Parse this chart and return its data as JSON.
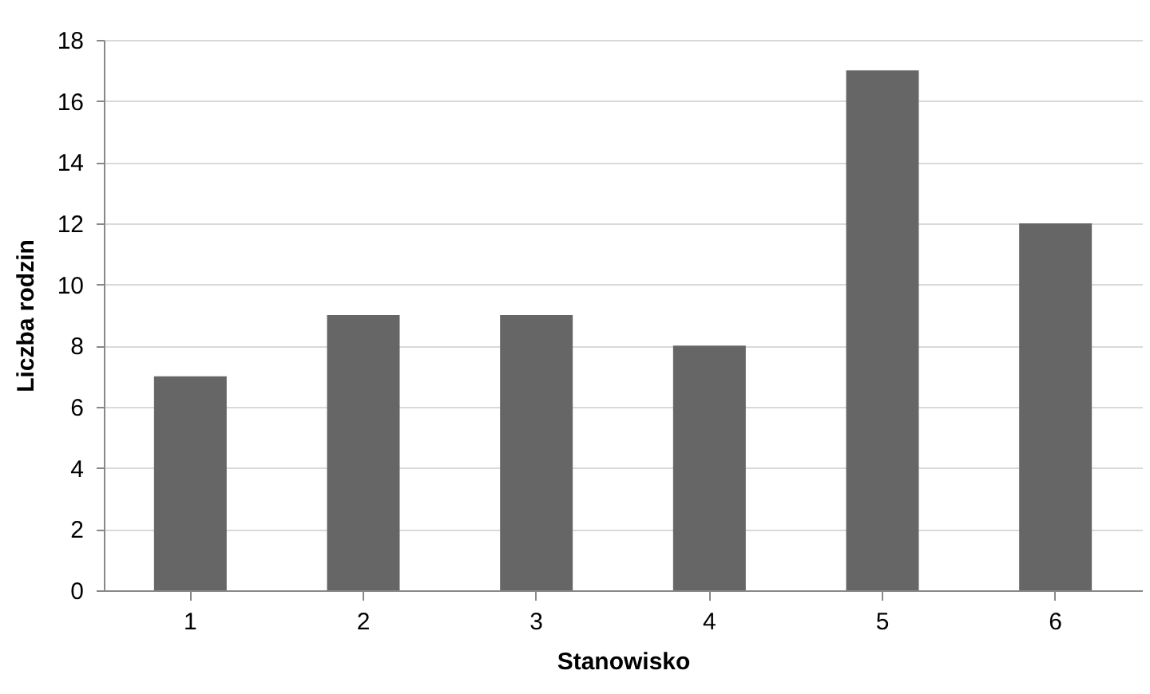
{
  "chart_data": {
    "type": "bar",
    "xlabel": "Stanowisko",
    "ylabel": "Liczba rodzin",
    "categories": [
      "1",
      "2",
      "3",
      "4",
      "5",
      "6"
    ],
    "values": [
      7,
      9,
      9,
      8,
      17,
      12
    ],
    "color": "#666666",
    "ylim": [
      0,
      18
    ],
    "yticks": [
      0,
      2,
      4,
      6,
      8,
      10,
      12,
      14,
      16,
      18
    ],
    "grid": "y"
  }
}
